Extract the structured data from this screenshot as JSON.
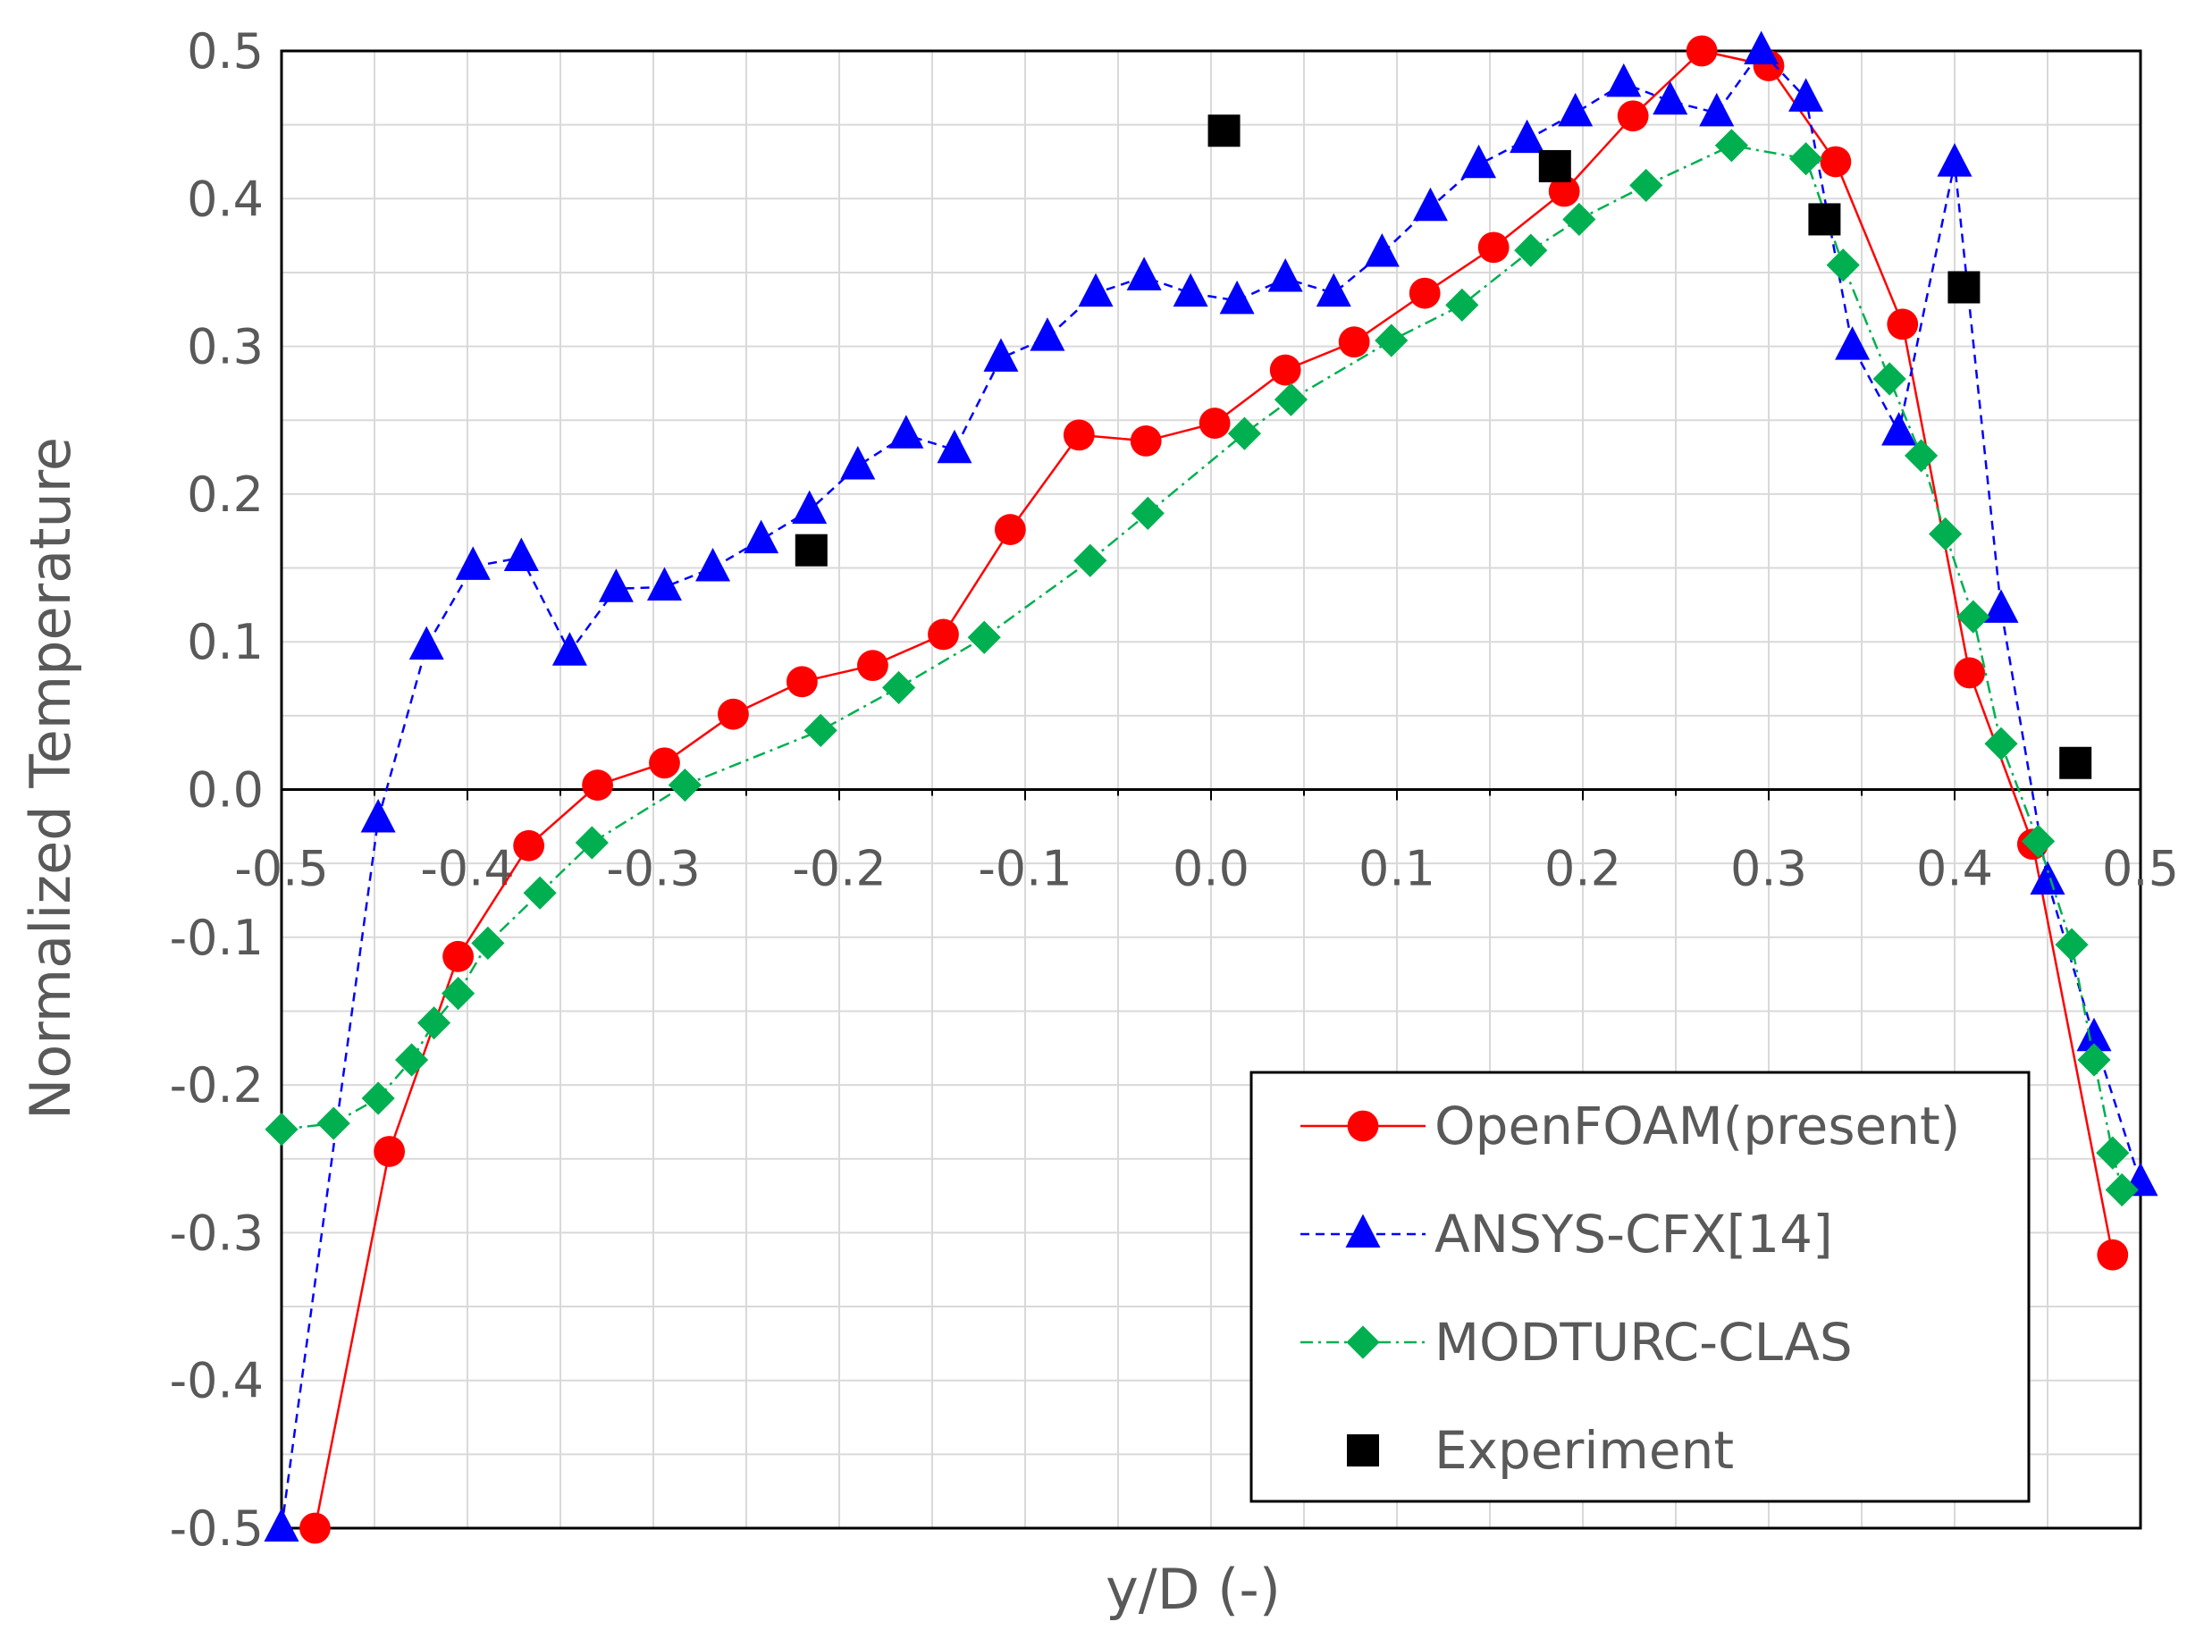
{
  "chart_data": {
    "type": "scatter",
    "title": "",
    "xlabel": "y/D (-)",
    "ylabel": "Normalized Temperature",
    "xlim": [
      -0.5,
      0.5
    ],
    "ylim": [
      -0.5,
      0.5
    ],
    "grid": true,
    "legend_position": "bottom-right",
    "x_ticks": [
      "-0.5",
      "-0.4",
      "-0.3",
      "-0.2",
      "-0.1",
      "0.0",
      "0.1",
      "0.2",
      "0.3",
      "0.4",
      "0.5"
    ],
    "y_ticks": [
      "-0.5",
      "-0.4",
      "-0.3",
      "-0.2",
      "-0.1",
      "0.0",
      "0.1",
      "0.2",
      "0.3",
      "0.4",
      "0.5"
    ],
    "series": [
      {
        "name": "OpenFOAM(present)",
        "color": "#ff0000",
        "marker": "circle",
        "line": "solid",
        "x": [
          -0.482,
          -0.442,
          -0.405,
          -0.367,
          -0.33,
          -0.294,
          -0.257,
          -0.22,
          -0.182,
          -0.144,
          -0.108,
          -0.071,
          -0.035,
          0.002,
          0.04,
          0.077,
          0.115,
          0.152,
          0.19,
          0.227,
          0.264,
          0.3,
          0.336,
          0.372,
          0.408,
          0.442,
          0.485
        ],
        "y": [
          -0.5,
          -0.245,
          -0.113,
          -0.038,
          0.003,
          0.018,
          0.051,
          0.073,
          0.084,
          0.105,
          0.176,
          0.24,
          0.236,
          0.248,
          0.284,
          0.303,
          0.336,
          0.367,
          0.405,
          0.456,
          0.5,
          0.49,
          0.425,
          0.315,
          0.079,
          -0.037,
          -0.315
        ]
      },
      {
        "name": "ANSYS-CFX[14]",
        "color": "#0000ff",
        "marker": "triangle",
        "line": "dashed",
        "x": [
          -0.5,
          -0.448,
          -0.422,
          -0.397,
          -0.371,
          -0.345,
          -0.32,
          -0.294,
          -0.268,
          -0.242,
          -0.216,
          -0.19,
          -0.164,
          -0.138,
          -0.113,
          -0.088,
          -0.062,
          -0.036,
          -0.011,
          0.014,
          0.04,
          0.066,
          0.092,
          0.118,
          0.144,
          0.17,
          0.196,
          0.222,
          0.247,
          0.272,
          0.296,
          0.32,
          0.345,
          0.37,
          0.4,
          0.425,
          0.45,
          0.475,
          0.5
        ],
        "y": [
          -0.5,
          -0.02,
          0.097,
          0.151,
          0.157,
          0.093,
          0.136,
          0.137,
          0.15,
          0.169,
          0.189,
          0.219,
          0.24,
          0.23,
          0.292,
          0.306,
          0.336,
          0.347,
          0.336,
          0.331,
          0.346,
          0.336,
          0.363,
          0.394,
          0.423,
          0.44,
          0.458,
          0.478,
          0.466,
          0.458,
          0.5,
          0.468,
          0.3,
          0.242,
          0.424,
          0.122,
          -0.062,
          -0.168,
          -0.266
        ]
      },
      {
        "name": "MODTURC-CLAS",
        "color": "#00b050",
        "marker": "diamond",
        "line": "dash-dot",
        "x": [
          -0.5,
          -0.472,
          -0.448,
          -0.43,
          -0.418,
          -0.405,
          -0.389,
          -0.361,
          -0.333,
          -0.283,
          -0.21,
          -0.168,
          -0.122,
          -0.065,
          -0.034,
          0.018,
          0.043,
          0.097,
          0.135,
          0.172,
          0.198,
          0.234,
          0.28,
          0.32,
          0.34,
          0.365,
          0.382,
          0.395,
          0.41,
          0.425,
          0.445,
          0.463,
          0.475,
          0.485,
          0.49
        ],
        "y": [
          -0.23,
          -0.226,
          -0.209,
          -0.183,
          -0.158,
          -0.138,
          -0.104,
          -0.07,
          -0.036,
          0.003,
          0.04,
          0.069,
          0.103,
          0.155,
          0.187,
          0.241,
          0.264,
          0.304,
          0.328,
          0.365,
          0.386,
          0.409,
          0.436,
          0.427,
          0.355,
          0.278,
          0.226,
          0.173,
          0.117,
          0.031,
          -0.035,
          -0.105,
          -0.183,
          -0.246,
          -0.271
        ]
      },
      {
        "name": "Experiment",
        "color": "#000000",
        "marker": "square",
        "line": "none",
        "x": [
          -0.215,
          0.007,
          0.185,
          0.33,
          0.405,
          0.465
        ],
        "y": [
          0.162,
          0.446,
          0.422,
          0.386,
          0.34,
          0.018
        ]
      }
    ]
  }
}
